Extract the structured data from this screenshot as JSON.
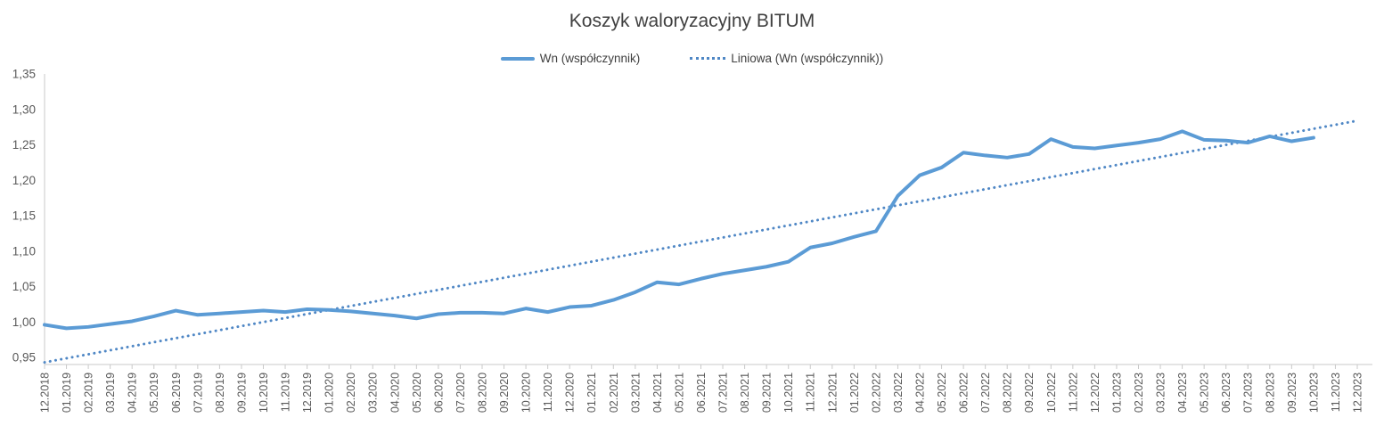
{
  "title": "Koszyk waloryzacyjny BITUM",
  "legend": {
    "items": [
      {
        "label": "Wn (współczynnik)",
        "style": "solid"
      },
      {
        "label": "Liniowa (Wn (współczynnik))",
        "style": "dotted"
      }
    ]
  },
  "colors": {
    "series": "#5B9BD5",
    "trend": "#4F87C5",
    "title_text": "#404040",
    "axis_text": "#595959",
    "axis_line": "#C9C9C9"
  },
  "chart_data": {
    "type": "line",
    "title": "Koszyk waloryzacyjny BITUM",
    "xlabel": "",
    "ylabel": "",
    "ylim": [
      0.94,
      1.35
    ],
    "ytick_start": 0.95,
    "ytick_step": 0.05,
    "ytick_labels": [
      "0,95",
      "1,00",
      "1,05",
      "1,10",
      "1,15",
      "1,20",
      "1,25",
      "1,30",
      "1,35"
    ],
    "decimal_separator": ",",
    "grid": false,
    "legend_position": "top",
    "categories": [
      "12.2018",
      "01.2019",
      "02.2019",
      "03.2019",
      "04.2019",
      "05.2019",
      "06.2019",
      "07.2019",
      "08.2019",
      "09.2019",
      "10.2019",
      "11.2019",
      "12.2019",
      "01.2020",
      "02.2020",
      "03.2020",
      "04.2020",
      "05.2020",
      "06.2020",
      "07.2020",
      "08.2020",
      "09.2020",
      "10.2020",
      "11.2020",
      "12.2020",
      "01.2021",
      "02.2021",
      "03.2021",
      "04.2021",
      "05.2021",
      "06.2021",
      "07.2021",
      "08.2021",
      "09.2021",
      "10.2021",
      "11.2021",
      "12.2021",
      "01.2022",
      "02.2022",
      "03.2022",
      "04.2022",
      "05.2022",
      "06.2022",
      "07.2022",
      "08.2022",
      "09.2022",
      "10.2022",
      "11.2022",
      "12.2022",
      "01.2023",
      "02.2023",
      "03.2023",
      "04.2023",
      "05.2023",
      "06.2023",
      "07.2023",
      "08.2023",
      "09.2023",
      "10.2023",
      "11.2023",
      "12.2023"
    ],
    "series": [
      {
        "name": "Wn (współczynnik)",
        "style": "solid",
        "values": [
          0.996,
          0.991,
          0.993,
          0.997,
          1.001,
          1.008,
          1.016,
          1.01,
          1.012,
          1.014,
          1.016,
          1.014,
          1.018,
          1.017,
          1.015,
          1.012,
          1.009,
          1.005,
          1.011,
          1.013,
          1.013,
          1.012,
          1.019,
          1.014,
          1.021,
          1.023,
          1.031,
          1.042,
          1.056,
          1.053,
          1.061,
          1.068,
          1.073,
          1.078,
          1.085,
          1.105,
          1.111,
          1.12,
          1.128,
          1.178,
          1.207,
          1.218,
          1.239,
          1.235,
          1.232,
          1.237,
          1.258,
          1.247,
          1.245,
          1.249,
          1.253,
          1.258,
          1.269,
          1.257,
          1.256,
          1.253,
          1.262,
          1.255,
          1.26,
          null,
          null
        ]
      },
      {
        "name": "Liniowa (Wn (współczynnik))",
        "style": "dotted-trendline",
        "trend": {
          "start_value": 0.943,
          "end_value": 1.284,
          "start_index": 0,
          "end_index": 60
        }
      }
    ]
  }
}
